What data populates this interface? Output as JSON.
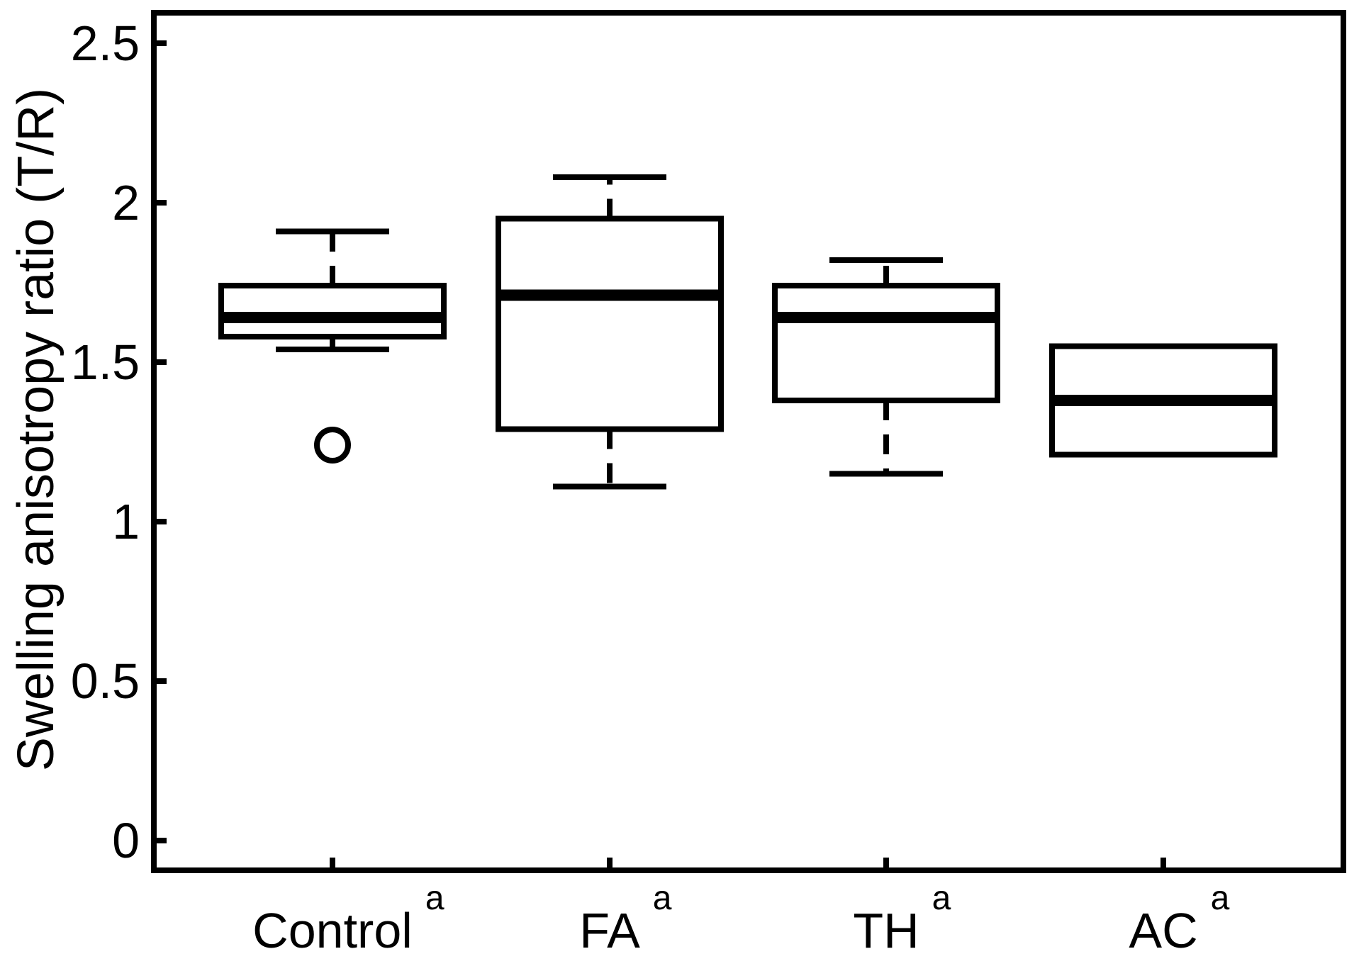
{
  "figure": {
    "background_color": "#ffffff",
    "line_color": "#000000"
  },
  "chart_data": {
    "type": "box",
    "title": "",
    "xlabel": "",
    "ylabel": "Swelling anisotropy ratio (T/R)",
    "ylim": [
      -0.09,
      2.6
    ],
    "yticks": [
      {
        "value": 0,
        "label": "0"
      },
      {
        "value": 0.5,
        "label": "0.5"
      },
      {
        "value": 1,
        "label": "1"
      },
      {
        "value": 1.5,
        "label": "1.5"
      },
      {
        "value": 2,
        "label": "2"
      },
      {
        "value": 2.5,
        "label": "2.5"
      }
    ],
    "grid": false,
    "legend": false,
    "categories": [
      {
        "label": "Control",
        "superscript": "a"
      },
      {
        "label": "FA",
        "superscript": "a"
      },
      {
        "label": "TH",
        "superscript": "a"
      },
      {
        "label": "AC",
        "superscript": "a"
      }
    ],
    "series": [
      {
        "name": "Control",
        "whisker_low": 1.54,
        "q1": 1.58,
        "median": 1.64,
        "q3": 1.74,
        "whisker_high": 1.91,
        "outliers": [
          1.24
        ]
      },
      {
        "name": "FA",
        "whisker_low": 1.11,
        "q1": 1.29,
        "median": 1.71,
        "q3": 1.95,
        "whisker_high": 2.08,
        "outliers": []
      },
      {
        "name": "TH",
        "whisker_low": 1.15,
        "q1": 1.38,
        "median": 1.64,
        "q3": 1.74,
        "whisker_high": 1.82,
        "outliers": []
      },
      {
        "name": "AC",
        "whisker_low": null,
        "q1": 1.21,
        "median": 1.38,
        "q3": 1.55,
        "whisker_high": null,
        "outliers": []
      }
    ]
  }
}
